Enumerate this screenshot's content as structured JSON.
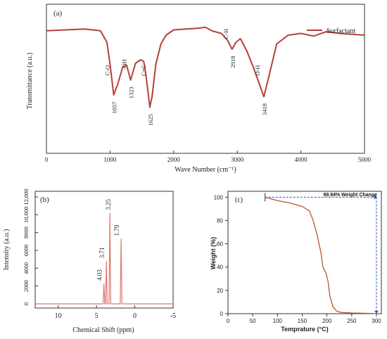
{
  "colors": {
    "ftir_line": "#b5403a",
    "nmr_line": "#e0796f",
    "tga_line": "#b5572f",
    "annotation_blue": "#2b4ecf",
    "axis": "#333333"
  },
  "chart_data": [
    {
      "type": "line",
      "panel_label": "(a)",
      "xlabel": "Wave Number (cm⁻¹)",
      "ylabel": "Transmittance (a.u.)",
      "xlim": [
        0,
        5000
      ],
      "xticks": [
        "0",
        "1000",
        "2000",
        "3000",
        "4000",
        "5000"
      ],
      "legend": "top-right",
      "series": [
        {
          "name": "Surfactant",
          "x": [
            0,
            300,
            600,
            850,
            950,
            1000,
            1057,
            1120,
            1200,
            1260,
            1323,
            1400,
            1480,
            1530,
            1560,
            1600,
            1625,
            1660,
            1720,
            1800,
            1880,
            2000,
            2200,
            2400,
            2500,
            2600,
            2750,
            2850,
            2918,
            2980,
            3050,
            3150,
            3250,
            3350,
            3418,
            3500,
            3620,
            3800,
            4000,
            4200,
            4400,
            4600,
            4800,
            5000
          ],
          "y": [
            0.93,
            0.94,
            0.95,
            0.93,
            0.8,
            0.55,
            0.2,
            0.32,
            0.52,
            0.54,
            0.37,
            0.56,
            0.6,
            0.58,
            0.45,
            0.22,
            0.06,
            0.18,
            0.55,
            0.78,
            0.88,
            0.94,
            0.95,
            0.96,
            0.97,
            0.93,
            0.9,
            0.82,
            0.72,
            0.8,
            0.84,
            0.7,
            0.52,
            0.32,
            0.18,
            0.42,
            0.78,
            0.88,
            0.9,
            0.87,
            0.92,
            0.9,
            0.89,
            0.88
          ]
        }
      ],
      "annotations": [
        {
          "text": "C-O",
          "x": 1057
        },
        {
          "text": "1057",
          "x": 1057
        },
        {
          "text": "-OH",
          "x": 1323
        },
        {
          "text": "1323",
          "x": 1323
        },
        {
          "text": "C=C",
          "x": 1625
        },
        {
          "text": "1625",
          "x": 1625
        },
        {
          "text": "C-H",
          "x": 2918
        },
        {
          "text": "2918",
          "x": 2918
        },
        {
          "text": "O-H",
          "x": 3418
        },
        {
          "text": "3418",
          "x": 3418
        }
      ]
    },
    {
      "type": "line",
      "panel_label": "(b)",
      "xlabel": "Chemical Shift (ppm)",
      "ylabel": "Intensity (a.u.)",
      "xlim": [
        13,
        -5
      ],
      "ylim": [
        0,
        12000
      ],
      "xticks": [
        "10",
        "5",
        "0",
        "-5"
      ],
      "yticks": [
        "0",
        "2000",
        "4000",
        "6000",
        "8000",
        "10,000",
        "12,000"
      ],
      "peaks": [
        {
          "ppm": 4.03,
          "value": 2300,
          "label": "4.03"
        },
        {
          "ppm": 3.71,
          "value": 4800,
          "label": "3.71"
        },
        {
          "ppm": 3.25,
          "value": 10200,
          "label": "3.25"
        },
        {
          "ppm": 1.79,
          "value": 7300,
          "label": "1.79"
        }
      ]
    },
    {
      "type": "line",
      "panel_label": "(c)",
      "xlabel": "Temprature (°C)",
      "ylabel": "Weight (%)",
      "xlim": [
        0,
        310
      ],
      "ylim": [
        0,
        105
      ],
      "xticks": [
        "0",
        "50",
        "100",
        "150",
        "200",
        "250",
        "300"
      ],
      "yticks": [
        "0",
        "20",
        "40",
        "60",
        "80",
        "100"
      ],
      "annotation": "99.94% Weight Change",
      "series": [
        {
          "x": [
            75,
            100,
            125,
            150,
            165,
            172,
            180,
            188,
            192,
            198,
            202,
            206,
            212,
            220,
            230,
            250,
            280,
            300
          ],
          "y": [
            99.94,
            97,
            95,
            92,
            88,
            80,
            68,
            52,
            40,
            35,
            28,
            15,
            6,
            2,
            1,
            0.6,
            0.3,
            0.06
          ]
        }
      ]
    }
  ]
}
